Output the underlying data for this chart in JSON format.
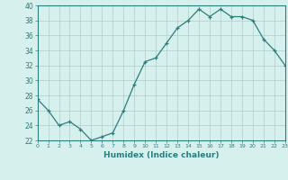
{
  "x": [
    0,
    1,
    2,
    3,
    4,
    5,
    6,
    7,
    8,
    9,
    10,
    11,
    12,
    13,
    14,
    15,
    16,
    17,
    18,
    19,
    20,
    21,
    22,
    23
  ],
  "y": [
    27.5,
    26,
    24,
    24.5,
    23.5,
    22,
    22.5,
    23,
    26,
    29.5,
    32.5,
    33,
    35,
    37,
    38,
    39.5,
    38.5,
    39.5,
    38.5,
    38.5,
    38,
    35.5,
    34,
    32
  ],
  "line_color": "#2d7d7d",
  "marker": "+",
  "bg_color": "#d6f0ee",
  "grid_color": "#aecdcc",
  "xlabel": "Humidex (Indice chaleur)",
  "ylim": [
    22,
    40
  ],
  "xlim": [
    0,
    23
  ],
  "yticks": [
    22,
    24,
    26,
    28,
    30,
    32,
    34,
    36,
    38,
    40
  ],
  "xticks": [
    0,
    1,
    2,
    3,
    4,
    5,
    6,
    7,
    8,
    9,
    10,
    11,
    12,
    13,
    14,
    15,
    16,
    17,
    18,
    19,
    20,
    21,
    22,
    23
  ]
}
